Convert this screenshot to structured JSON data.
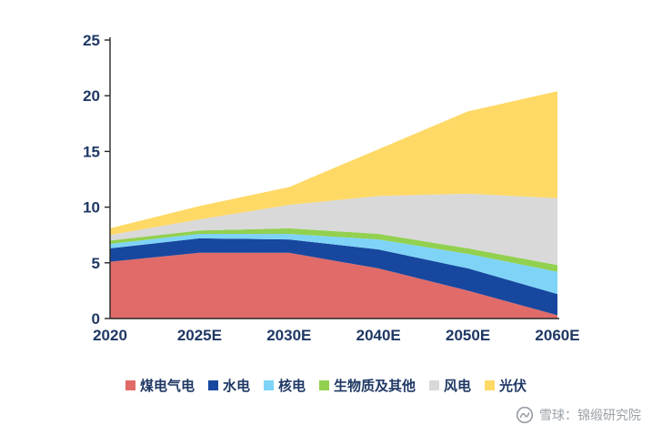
{
  "chart_data": {
    "type": "area",
    "stacked": true,
    "title": "",
    "xlabel": "",
    "ylabel": "",
    "categories": [
      "2020",
      "2025E",
      "2030E",
      "2040E",
      "2050E",
      "2060E"
    ],
    "series": [
      {
        "name": "煤电气电",
        "color": "#E06B69",
        "values": [
          5.1,
          5.9,
          5.9,
          4.5,
          2.5,
          0.3
        ]
      },
      {
        "name": "水电",
        "color": "#17479E",
        "values": [
          1.2,
          1.3,
          1.2,
          1.7,
          2.0,
          1.9
        ]
      },
      {
        "name": "核电",
        "color": "#7ED3F7",
        "values": [
          0.4,
          0.4,
          0.5,
          0.9,
          1.3,
          2.0
        ]
      },
      {
        "name": "生物质及其他",
        "color": "#92D050",
        "values": [
          0.3,
          0.3,
          0.5,
          0.5,
          0.5,
          0.6
        ]
      },
      {
        "name": "风电",
        "color": "#D9D9D9",
        "values": [
          0.5,
          1.0,
          2.1,
          3.4,
          4.9,
          6.0
        ]
      },
      {
        "name": "光伏",
        "color": "#FFD966",
        "values": [
          0.6,
          1.2,
          1.6,
          4.2,
          7.4,
          9.6
        ]
      }
    ],
    "ylim": [
      0,
      25
    ],
    "y_ticks": [
      0,
      5,
      10,
      15,
      20,
      25
    ],
    "grid": false,
    "legend_position": "bottom",
    "axis_color": "#262626",
    "label_color": "#1F3864"
  },
  "watermark": {
    "text": "雪球：锦缎研究院"
  }
}
